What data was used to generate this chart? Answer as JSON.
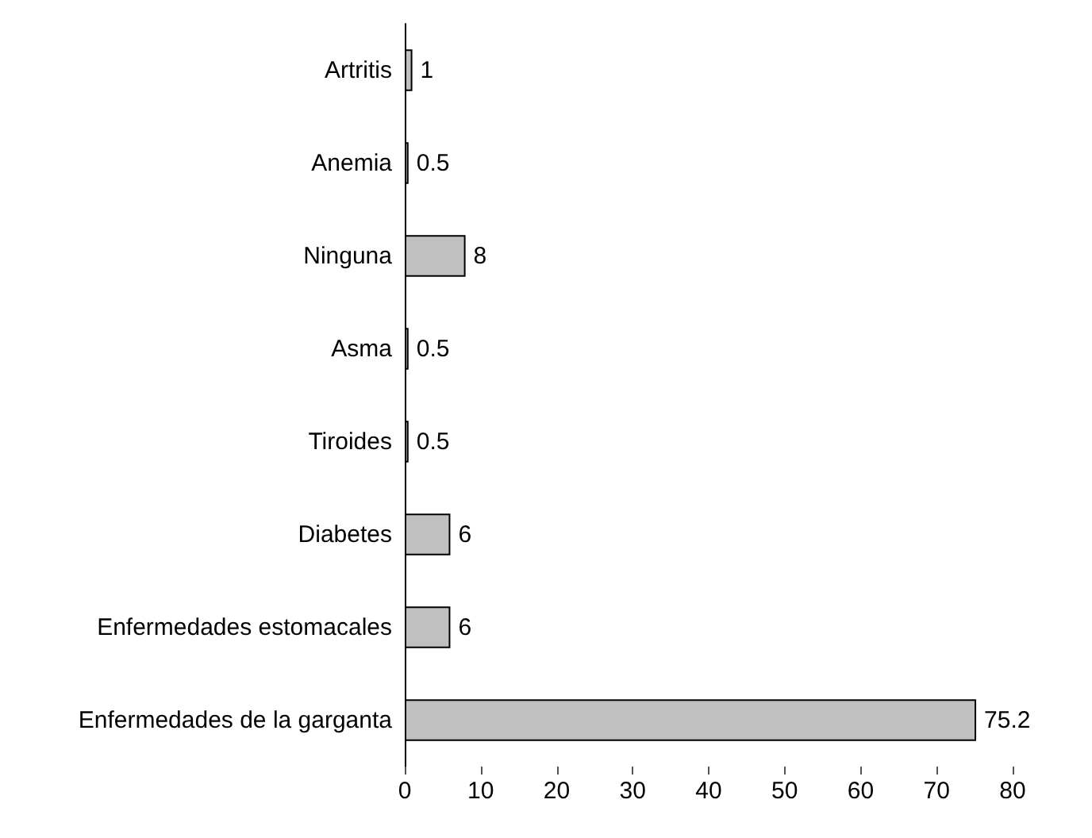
{
  "chart_data": {
    "type": "bar",
    "orientation": "horizontal",
    "categories": [
      "Artritis",
      "Anemia",
      "Ninguna",
      "Asma",
      "Tiroides",
      "Diabetes",
      "Enfermedades estomacales",
      "Enfermedades de la garganta"
    ],
    "values": [
      1,
      0.5,
      8,
      0.5,
      0.5,
      6,
      6,
      75.2
    ],
    "color": "#c0c0c0",
    "xlim": [
      0,
      80
    ],
    "xticks": [
      0,
      10,
      20,
      30,
      40,
      50,
      60,
      70,
      80
    ],
    "grid": false,
    "data_labels": true
  }
}
